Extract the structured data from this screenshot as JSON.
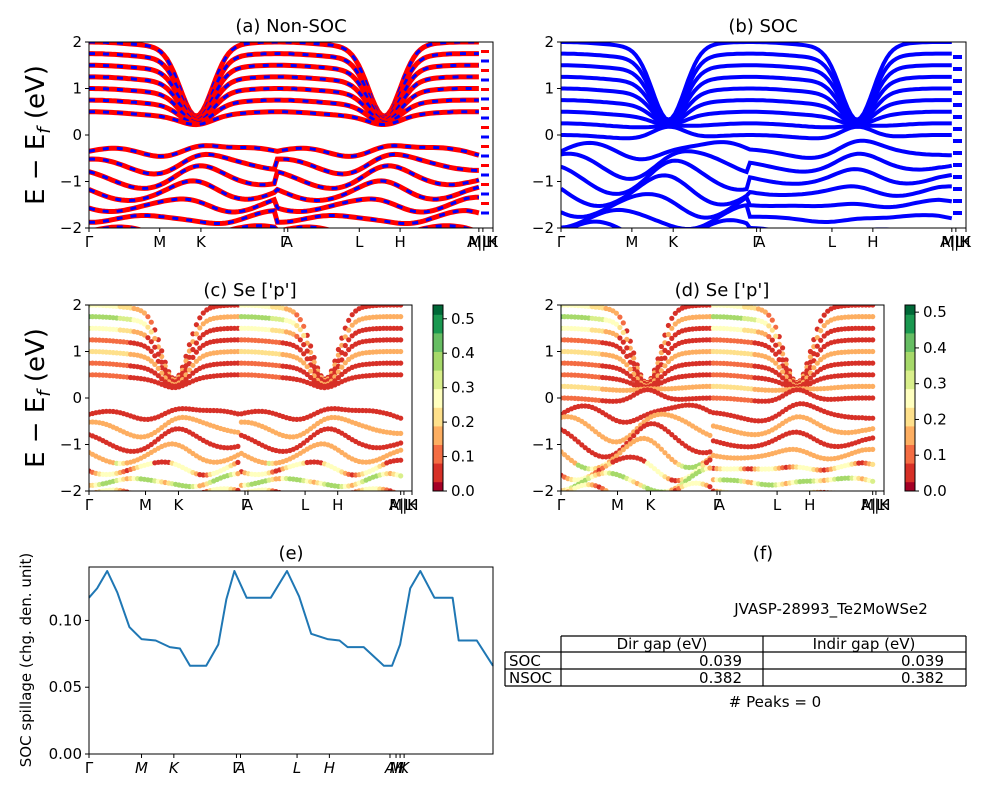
{
  "chart_data": [
    {
      "panel": "a",
      "type": "line",
      "title": "(a) Non-SOC",
      "ylabel": "E − E_f (eV)",
      "ylim": [
        -2,
        2
      ],
      "yticks": [
        "−2",
        "−1",
        "0",
        "1",
        "2"
      ],
      "kpath_labels": [
        "Γ",
        "M",
        "K",
        "Γ",
        "A",
        "L",
        "H",
        "A|L",
        "M|H",
        "K"
      ],
      "series": [
        {
          "color": "#ff0000",
          "style": "solid"
        },
        {
          "color": "#0000ff",
          "style": "dashed"
        }
      ],
      "band_extrema": {
        "conduction_min": 0.382,
        "valence_max": -0.0
      }
    },
    {
      "panel": "b",
      "type": "line",
      "title": "(b) SOC",
      "ylim": [
        -2,
        2
      ],
      "yticks": [
        "−2",
        "−1",
        "0",
        "1",
        "2"
      ],
      "kpath_labels": [
        "Γ",
        "M",
        "K",
        "Γ",
        "A",
        "L",
        "H",
        "A|L",
        "M|H",
        "K"
      ],
      "series": [
        {
          "color": "#0000ff",
          "style": "solid"
        }
      ]
    },
    {
      "panel": "c",
      "type": "scatter",
      "title": "(c)  Se ['p']",
      "ylabel": "E − E_f (eV)",
      "ylim": [
        -2,
        2
      ],
      "yticks": [
        "−2",
        "−1",
        "0",
        "1",
        "2"
      ],
      "kpath_labels": [
        "Γ",
        "M",
        "K",
        "Γ",
        "A",
        "L",
        "H",
        "A|L",
        "M|H",
        "K"
      ],
      "colorbar": {
        "min": 0.0,
        "max": 0.54,
        "ticks": [
          "0.0",
          "0.1",
          "0.2",
          "0.3",
          "0.4",
          "0.5"
        ],
        "cmap": "RdYlGn"
      }
    },
    {
      "panel": "d",
      "type": "scatter",
      "title": "(d) Se ['p']",
      "ylim": [
        -2,
        2
      ],
      "yticks": [
        "−2",
        "−1",
        "0",
        "1",
        "2"
      ],
      "kpath_labels": [
        "Γ",
        "M",
        "K",
        "Γ",
        "A",
        "L",
        "H",
        "A|L",
        "M|H",
        "K"
      ],
      "colorbar": {
        "min": 0.0,
        "max": 0.52,
        "ticks": [
          "0.0",
          "0.1",
          "0.2",
          "0.3",
          "0.4",
          "0.5"
        ],
        "cmap": "RdYlGn"
      }
    },
    {
      "panel": "e",
      "type": "line",
      "title": "(e)",
      "ylabel": "SOC spillage (chg. den. unit)",
      "ylim": [
        0,
        0.14
      ],
      "yticks": [
        "0.00",
        "0.05",
        "0.10"
      ],
      "kpath_labels": [
        "Γ",
        "M",
        "K",
        "Γ",
        "A",
        "L",
        "H",
        "A",
        "M",
        "H",
        "K"
      ],
      "series": [
        {
          "color": "#1f77b4",
          "x": [
            0,
            0.02,
            0.045,
            0.07,
            0.1,
            0.13,
            0.165,
            0.2,
            0.225,
            0.25,
            0.29,
            0.32,
            0.34,
            0.36,
            0.39,
            0.42,
            0.45,
            0.49,
            0.52,
            0.55,
            0.59,
            0.62,
            0.64,
            0.68,
            0.73,
            0.75,
            0.77,
            0.795,
            0.82,
            0.855,
            0.9,
            0.915,
            0.96,
            1.0
          ],
          "y": [
            0.117,
            0.124,
            0.137,
            0.121,
            0.095,
            0.086,
            0.085,
            0.08,
            0.079,
            0.066,
            0.066,
            0.082,
            0.116,
            0.137,
            0.117,
            0.117,
            0.117,
            0.137,
            0.118,
            0.09,
            0.086,
            0.085,
            0.08,
            0.08,
            0.066,
            0.066,
            0.082,
            0.124,
            0.137,
            0.117,
            0.117,
            0.085,
            0.085,
            0.066
          ]
        }
      ]
    }
  ],
  "panel_f": {
    "title": "(f)",
    "material": "JVASP-28993_Te2MoWSe2",
    "table": {
      "headers": [
        "Dir gap (eV)",
        "Indir gap (eV)"
      ],
      "rows": [
        {
          "label": "SOC",
          "dir": "0.039",
          "indir": "0.039"
        },
        {
          "label": "NSOC",
          "dir": "0.382",
          "indir": "0.382"
        }
      ]
    },
    "peaks": "# Peaks = 0"
  }
}
